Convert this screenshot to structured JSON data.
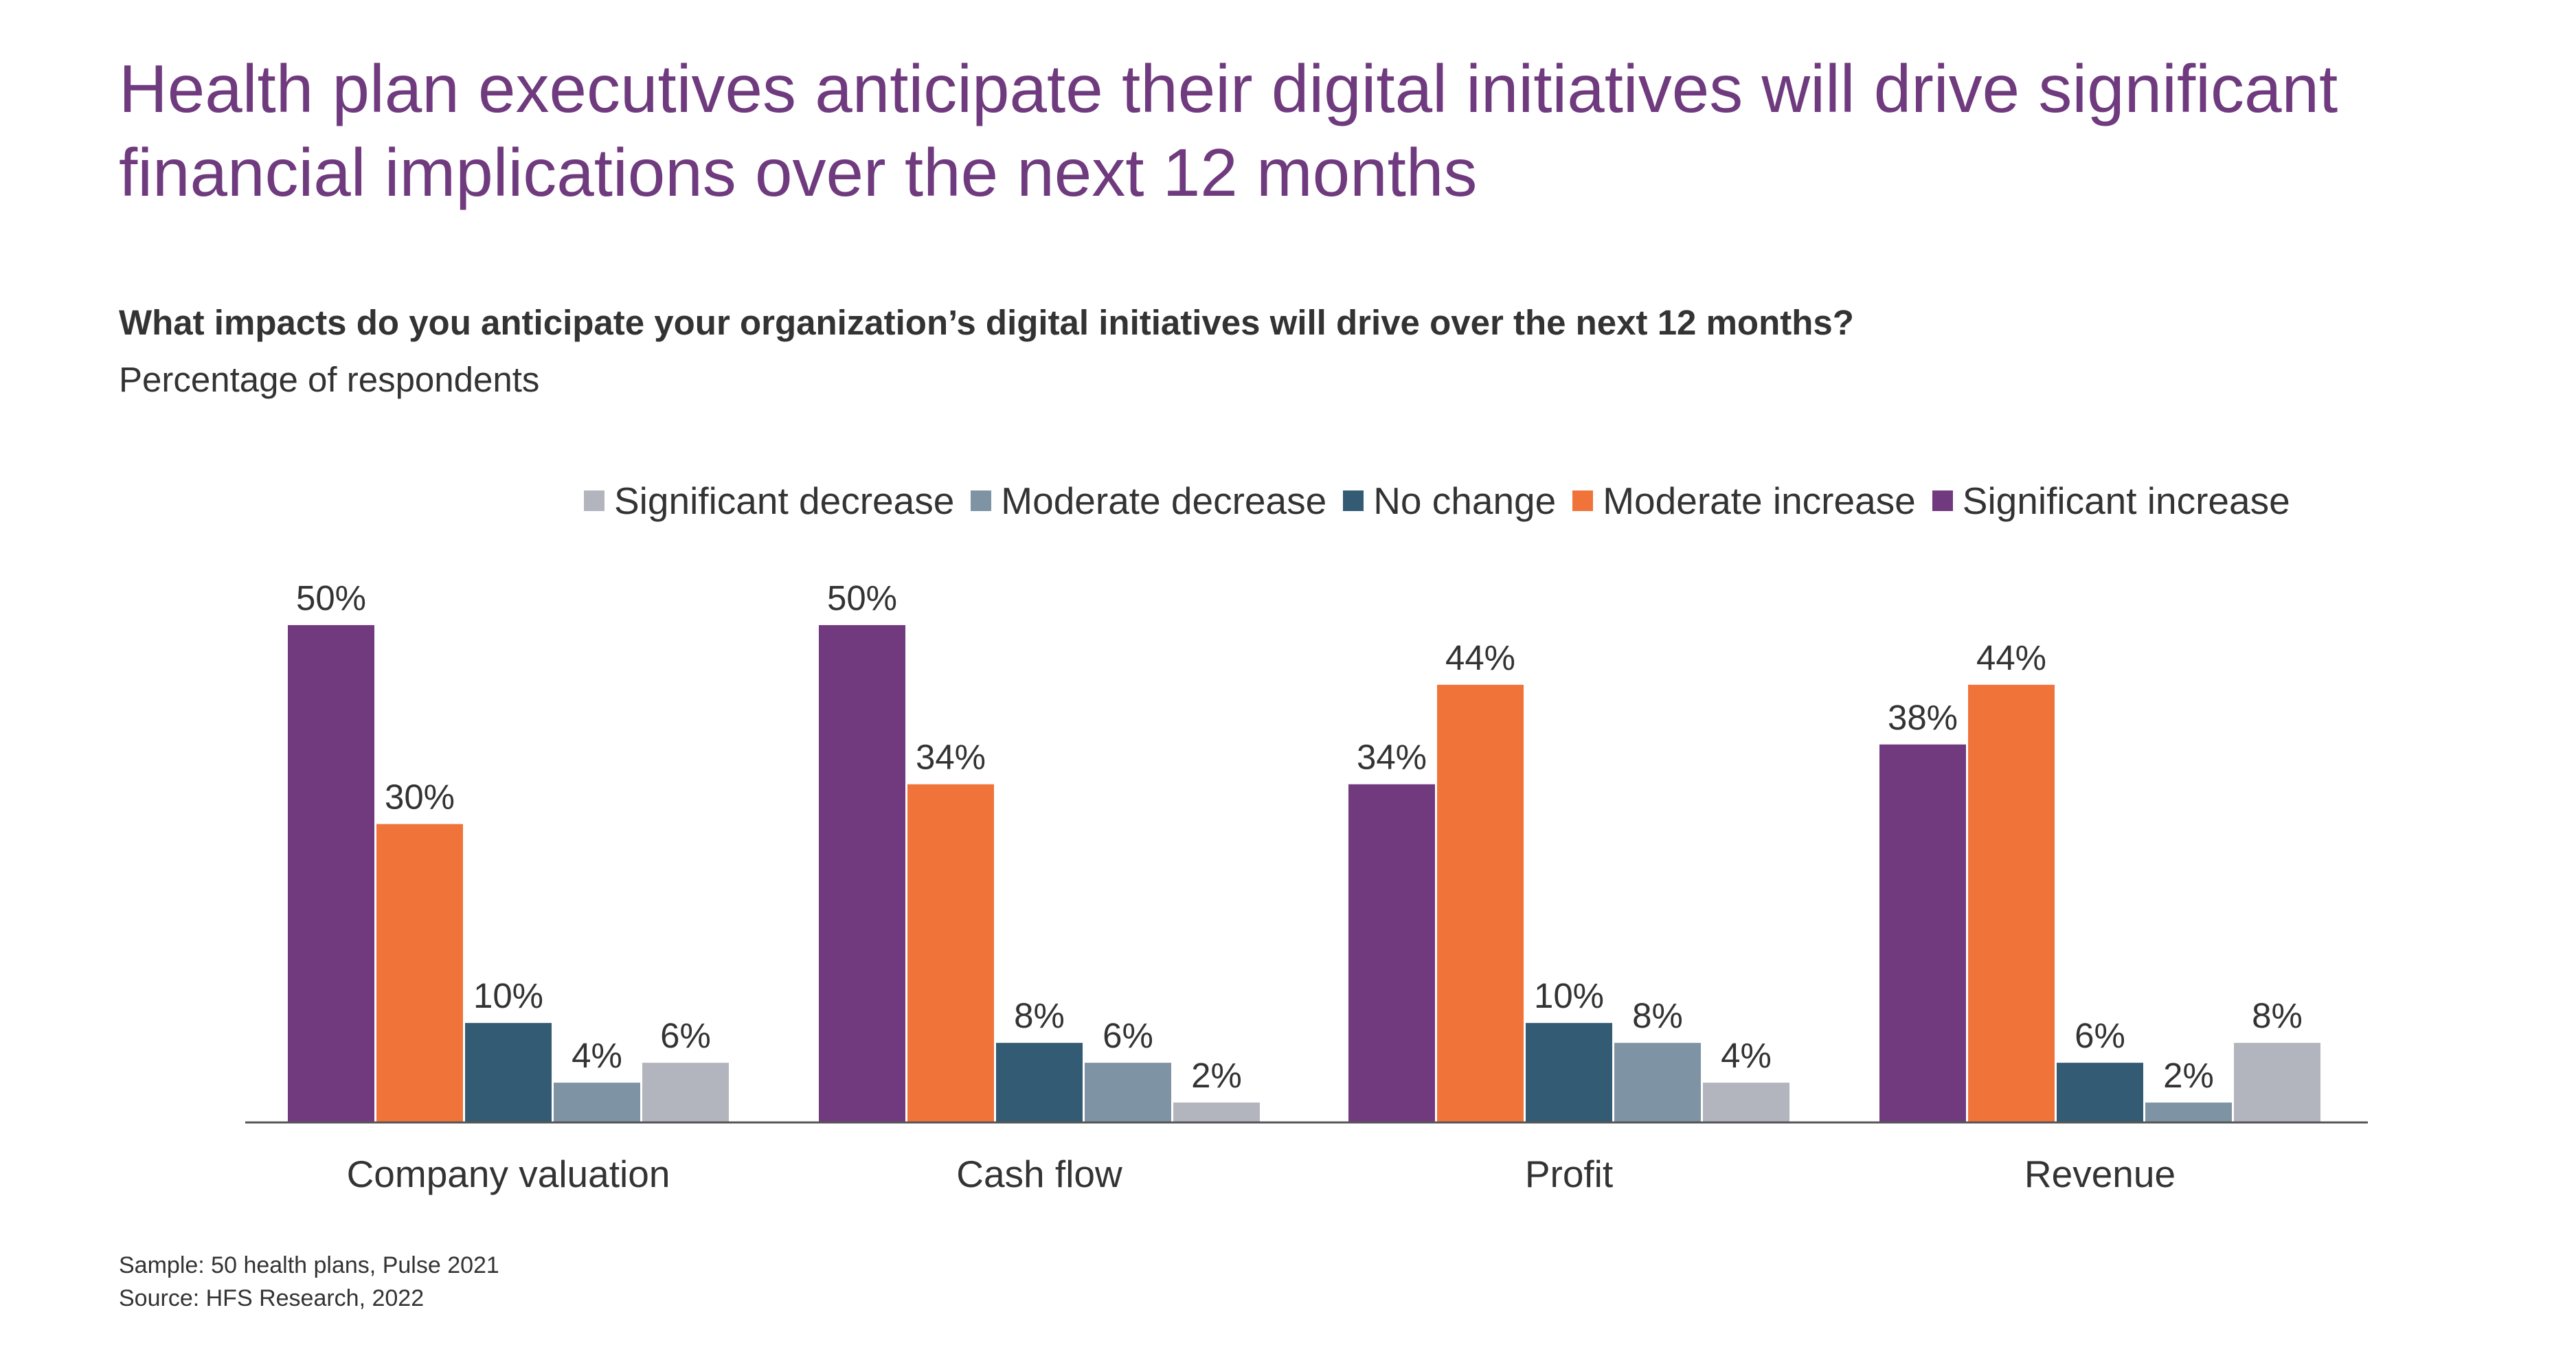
{
  "title": "Health plan executives anticipate their digital initiatives will drive significant financial implications over the next 12 months",
  "question": "What impacts do you anticipate your organization’s digital initiatives will drive over the next 12 months?",
  "subtitle": "Percentage of respondents",
  "legend": [
    {
      "label": "Significant decrease",
      "color": "#b3b5be"
    },
    {
      "label": "Moderate decrease",
      "color": "#7e93a4"
    },
    {
      "label": "No change",
      "color": "#335b73"
    },
    {
      "label": "Moderate increase",
      "color": "#f0743a"
    },
    {
      "label": "Significant increase",
      "color": "#723a7e"
    }
  ],
  "footnotes": {
    "sample": "Sample: 50 health plans, Pulse 2021",
    "source": "Source: HFS Research, 2022"
  },
  "chart_data": {
    "type": "bar",
    "categories": [
      "Company valuation",
      "Cash flow",
      "Profit",
      "Revenue"
    ],
    "series": [
      {
        "name": "Significant increase",
        "color": "#723a7e",
        "values": [
          50,
          50,
          34,
          38
        ]
      },
      {
        "name": "Moderate increase",
        "color": "#f0743a",
        "values": [
          30,
          34,
          44,
          44
        ]
      },
      {
        "name": "No change",
        "color": "#335b73",
        "values": [
          10,
          8,
          10,
          6
        ]
      },
      {
        "name": "Moderate decrease",
        "color": "#7e93a4",
        "values": [
          4,
          6,
          8,
          2
        ]
      },
      {
        "name": "Significant decrease",
        "color": "#b3b5be",
        "values": [
          6,
          2,
          4,
          8
        ]
      }
    ],
    "value_suffix": "%",
    "ylim": [
      0,
      50
    ],
    "grid": false,
    "legend_position": "top"
  }
}
